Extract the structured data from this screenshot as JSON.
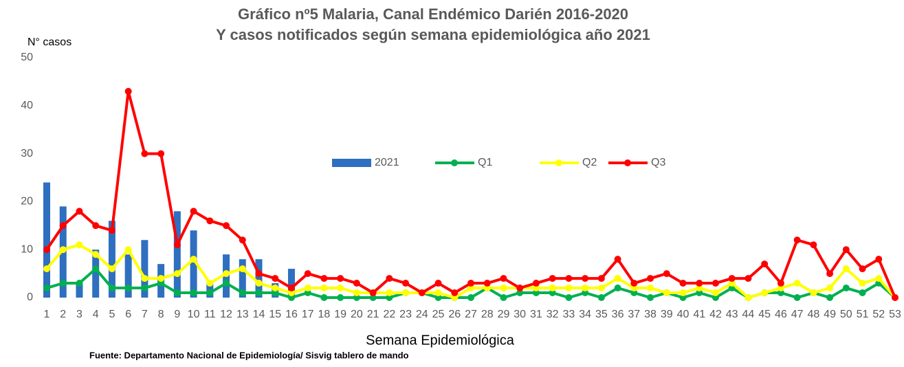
{
  "chart_data": {
    "type": "bar_line",
    "title": "Gráfico nº5 Malaria, Canal Endémico Darién 2016-2020",
    "subtitle": "Y casos notificados según semana epidemiológica año 2021",
    "y_label": "N° casos",
    "x_label": "Semana Epidemiológica",
    "source": "Fuente: Departamento Nacional de Epidemiología/ Sisvig tablero de mando",
    "categories": [
      "1",
      "2",
      "3",
      "4",
      "5",
      "6",
      "7",
      "8",
      "9",
      "10",
      "11",
      "12",
      "13",
      "14",
      "15",
      "16",
      "17",
      "18",
      "19",
      "20",
      "21",
      "22",
      "23",
      "24",
      "25",
      "26",
      "27",
      "28",
      "29",
      "30",
      "31",
      "32",
      "33",
      "34",
      "35",
      "36",
      "37",
      "38",
      "39",
      "40",
      "41",
      "42",
      "43",
      "44",
      "45",
      "46",
      "47",
      "48",
      "49",
      "50",
      "51",
      "52",
      "53"
    ],
    "ylim": [
      0,
      50
    ],
    "yticks": [
      0,
      10,
      20,
      30,
      40,
      50
    ],
    "series": [
      {
        "name": "2021",
        "kind": "bar",
        "color": "#2e6fc0",
        "values": [
          24,
          19,
          3,
          10,
          16,
          9,
          12,
          7,
          18,
          14,
          3,
          9,
          8,
          8,
          3,
          6,
          null,
          null,
          null,
          null,
          null,
          null,
          null,
          null,
          null,
          null,
          null,
          null,
          null,
          null,
          null,
          null,
          null,
          null,
          null,
          null,
          null,
          null,
          null,
          null,
          null,
          null,
          null,
          null,
          null,
          null,
          null,
          null,
          null,
          null,
          null,
          null,
          null
        ]
      },
      {
        "name": "Q1",
        "kind": "line",
        "color": "#00b050",
        "values": [
          2,
          3,
          3,
          6,
          2,
          2,
          2,
          3,
          1,
          1,
          1,
          3,
          1,
          1,
          1,
          0,
          1,
          0,
          0,
          0,
          0,
          0,
          1,
          1,
          0,
          0,
          0,
          2,
          0,
          1,
          1,
          1,
          0,
          1,
          0,
          2,
          1,
          0,
          1,
          0,
          1,
          0,
          2,
          0,
          1,
          1,
          0,
          1,
          0,
          2,
          1,
          3,
          0
        ]
      },
      {
        "name": "Q2",
        "kind": "line",
        "color": "#ffff00",
        "values": [
          6,
          10,
          11,
          9,
          6,
          10,
          4,
          4,
          5,
          8,
          3,
          5,
          6,
          3,
          2,
          1,
          2,
          2,
          2,
          1,
          1,
          1,
          1,
          1,
          1,
          0,
          2,
          2,
          2,
          2,
          2,
          2,
          2,
          2,
          2,
          4,
          2,
          2,
          1,
          1,
          2,
          1,
          3,
          0,
          1,
          2,
          3,
          1,
          2,
          6,
          3,
          4,
          0
        ]
      },
      {
        "name": "Q3",
        "kind": "line",
        "color": "#ff0000",
        "values": [
          10,
          15,
          18,
          15,
          14,
          43,
          30,
          30,
          11,
          18,
          16,
          15,
          12,
          5,
          4,
          2,
          5,
          4,
          4,
          3,
          1,
          4,
          3,
          1,
          3,
          1,
          3,
          3,
          4,
          2,
          3,
          4,
          4,
          4,
          4,
          8,
          3,
          4,
          5,
          3,
          3,
          3,
          4,
          4,
          7,
          3,
          12,
          11,
          5,
          10,
          6,
          8,
          0
        ]
      }
    ]
  }
}
